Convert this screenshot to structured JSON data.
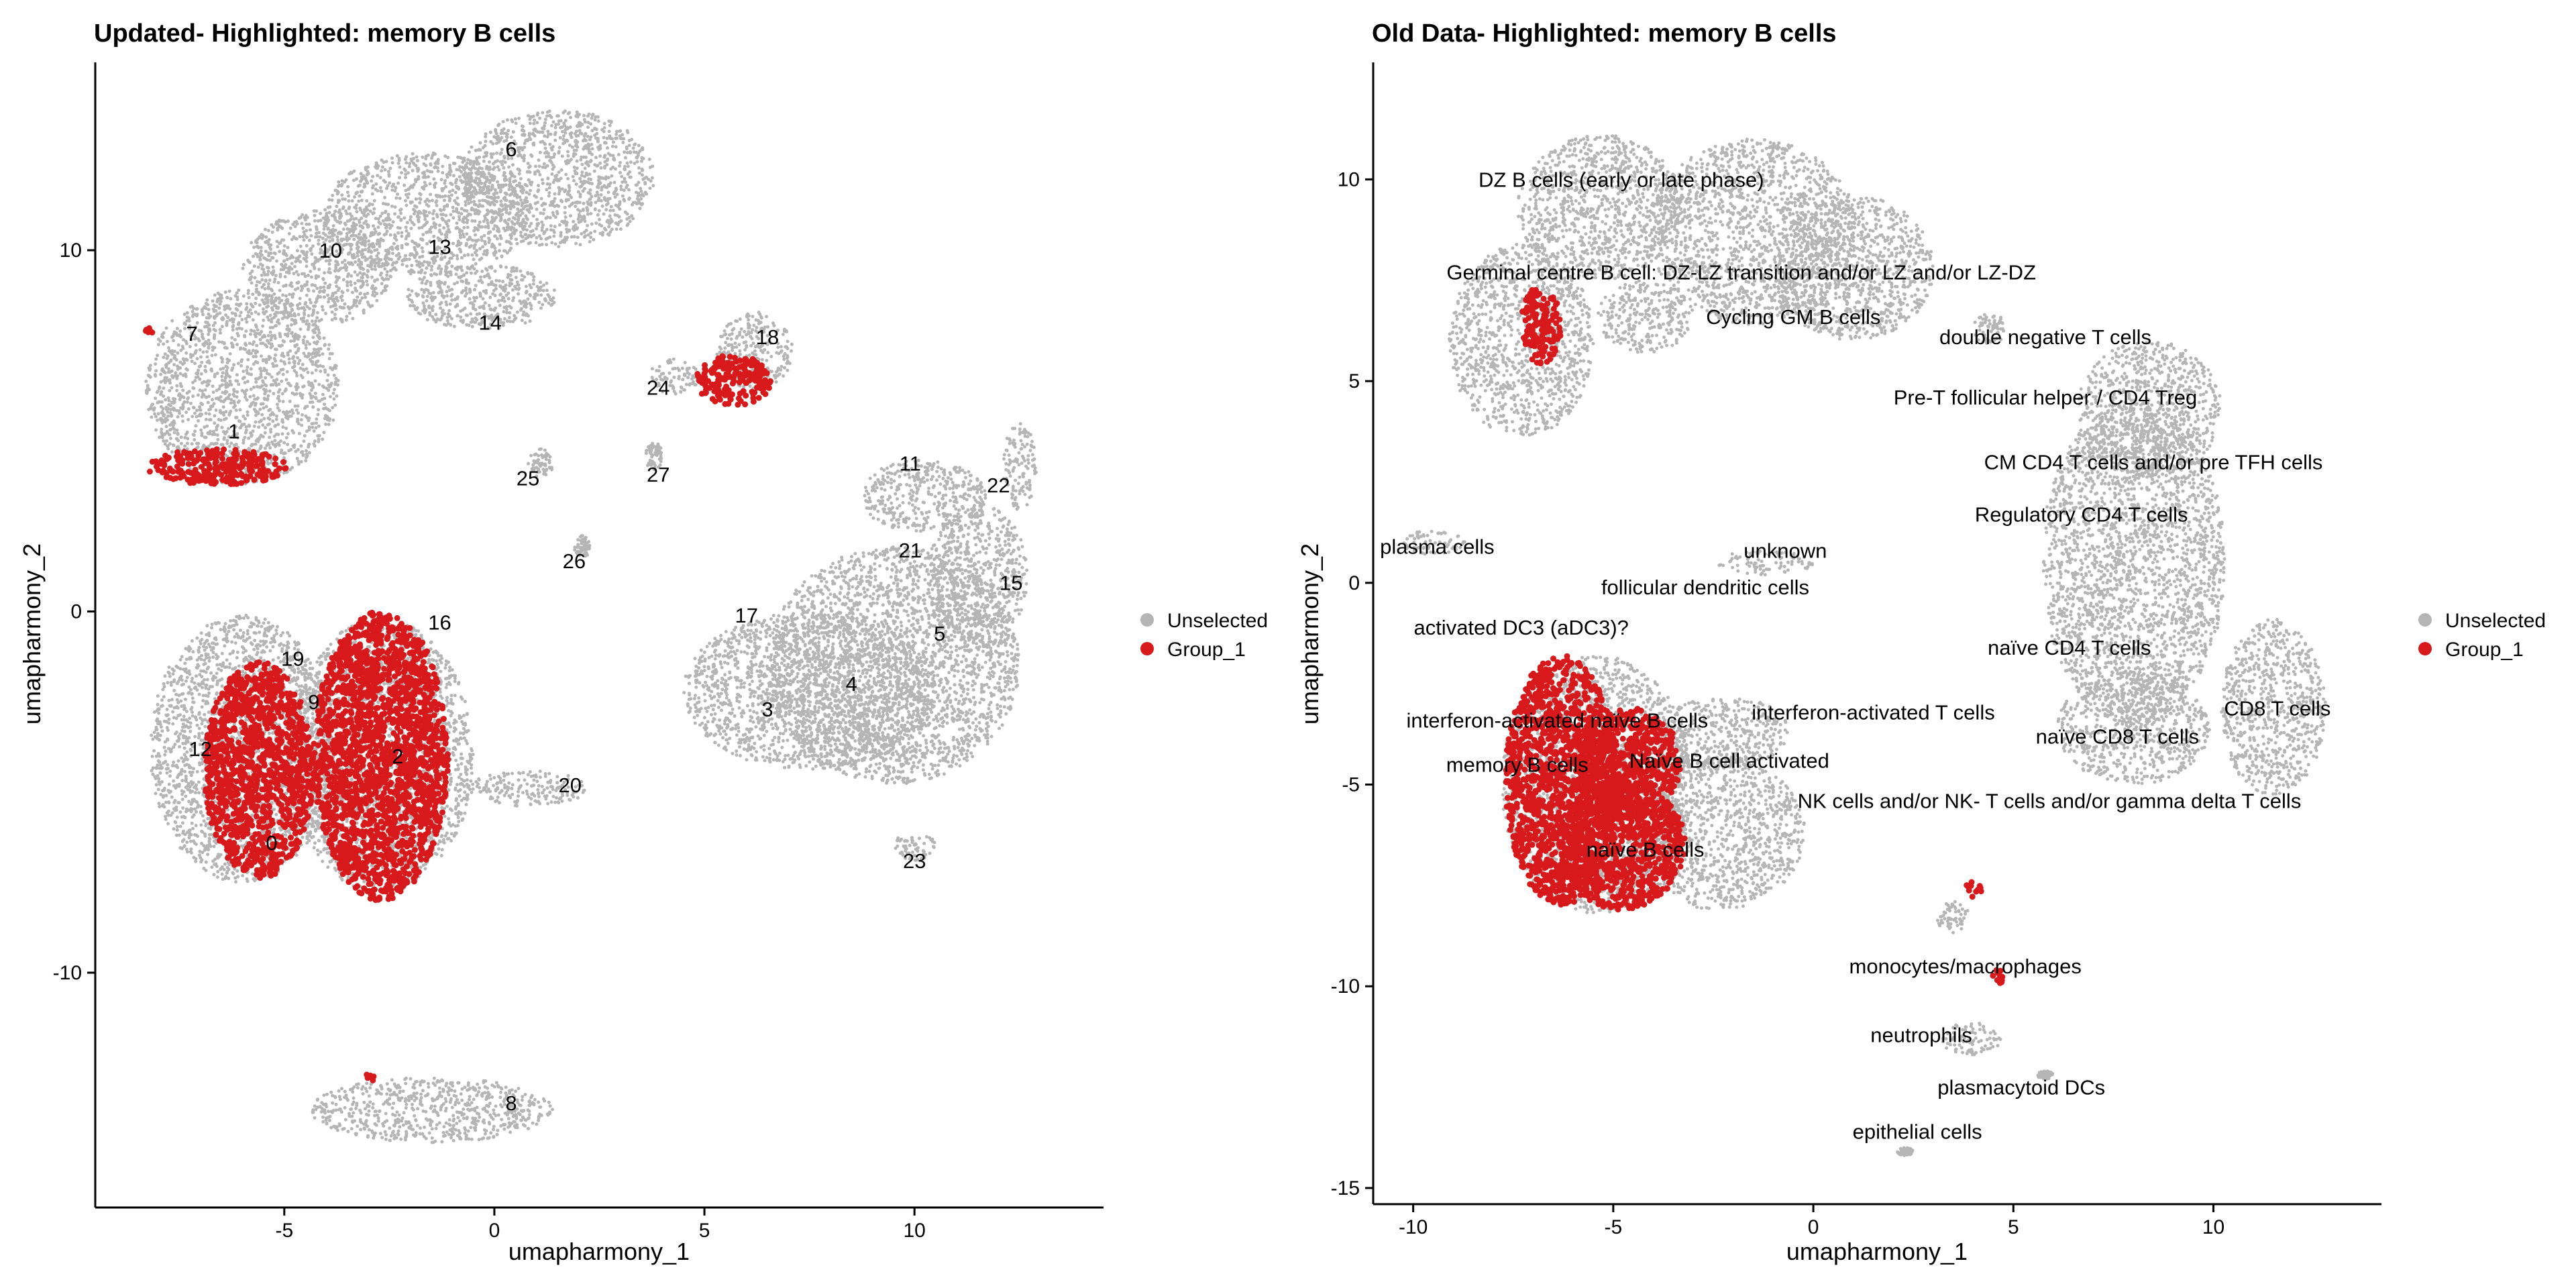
{
  "colors": {
    "unselected": "#B5B5B5",
    "group": "#D7191C",
    "axis": "#000000"
  },
  "chart_data": [
    {
      "type": "scatter",
      "title": "Updated- Highlighted: memory B cells",
      "xlabel": "umapharmony_1",
      "ylabel": "umapharmony_2",
      "xlim": [
        -9.5,
        14.5
      ],
      "ylim": [
        -16.5,
        15.2
      ],
      "xticks": [
        -5,
        0,
        5,
        10
      ],
      "yticks": [
        -10,
        0,
        10
      ],
      "legend": {
        "position": "right",
        "entries": [
          {
            "label": "Unselected",
            "color": "#B5B5B5"
          },
          {
            "label": "Group_1",
            "color": "#D7191C"
          }
        ]
      },
      "series": [
        {
          "name": "Unselected",
          "clusters": [
            {
              "cx": -6.0,
              "cy": 6.2,
              "rx": 2.3,
              "ry": 2.7
            },
            {
              "cx": -4.2,
              "cy": 9.5,
              "rx": 1.8,
              "ry": 1.6
            },
            {
              "cx": -1.6,
              "cy": 11.0,
              "rx": 2.5,
              "ry": 1.7
            },
            {
              "cx": 1.5,
              "cy": 12.0,
              "rx": 2.3,
              "ry": 1.9
            },
            {
              "cx": -0.3,
              "cy": 8.7,
              "rx": 1.8,
              "ry": 0.9
            },
            {
              "cx": -6.0,
              "cy": -3.8,
              "rx": 2.2,
              "ry": 3.7
            },
            {
              "cx": -2.7,
              "cy": -4.0,
              "rx": 2.2,
              "ry": 3.8
            },
            {
              "cx": 0.8,
              "cy": -4.9,
              "rx": 1.4,
              "ry": 0.5
            },
            {
              "cx": -1.5,
              "cy": -13.8,
              "rx": 2.9,
              "ry": 0.9
            },
            {
              "cx": 7.5,
              "cy": -2.2,
              "rx": 3.0,
              "ry": 2.2
            },
            {
              "cx": 9.5,
              "cy": -1.5,
              "rx": 3.0,
              "ry": 3.3
            },
            {
              "cx": 11.5,
              "cy": 1.0,
              "rx": 1.2,
              "ry": 2.0
            },
            {
              "cx": 10.2,
              "cy": 3.2,
              "rx": 1.5,
              "ry": 1.0
            },
            {
              "cx": 12.5,
              "cy": 4.0,
              "rx": 0.4,
              "ry": 1.2
            },
            {
              "cx": 6.2,
              "cy": 7.2,
              "rx": 0.9,
              "ry": 1.1
            },
            {
              "cx": 4.3,
              "cy": 6.5,
              "rx": 0.6,
              "ry": 0.5
            },
            {
              "cx": 10.0,
              "cy": -6.5,
              "rx": 0.5,
              "ry": 0.4
            },
            {
              "cx": 1.1,
              "cy": 4.1,
              "rx": 0.3,
              "ry": 0.4
            },
            {
              "cx": 3.8,
              "cy": 4.3,
              "rx": 0.2,
              "ry": 0.4
            },
            {
              "cx": 2.1,
              "cy": 1.8,
              "rx": 0.2,
              "ry": 0.3
            }
          ]
        },
        {
          "name": "Group_1",
          "clusters": [
            {
              "cx": -2.7,
              "cy": -4.0,
              "rx": 1.6,
              "ry": 4.0
            },
            {
              "cx": -5.6,
              "cy": -4.4,
              "rx": 1.3,
              "ry": 3.0
            },
            {
              "cx": -6.6,
              "cy": 4.0,
              "rx": 1.7,
              "ry": 0.5
            },
            {
              "cx": 5.7,
              "cy": 6.4,
              "rx": 0.9,
              "ry": 0.7
            },
            {
              "cx": -3.0,
              "cy": -12.9,
              "rx": 0.2,
              "ry": 0.1
            },
            {
              "cx": -8.2,
              "cy": 7.7,
              "rx": 0.1,
              "ry": 0.2
            }
          ]
        }
      ],
      "annotations": [
        {
          "text": "6",
          "x": 0.4,
          "y": 12.8
        },
        {
          "text": "10",
          "x": -3.9,
          "y": 10.0
        },
        {
          "text": "13",
          "x": -1.3,
          "y": 10.1
        },
        {
          "text": "14",
          "x": -0.1,
          "y": 8.0
        },
        {
          "text": "7",
          "x": -7.2,
          "y": 7.7
        },
        {
          "text": "1",
          "x": -6.2,
          "y": 5.0
        },
        {
          "text": "18",
          "x": 6.5,
          "y": 7.6
        },
        {
          "text": "24",
          "x": 3.9,
          "y": 6.2
        },
        {
          "text": "25",
          "x": 0.8,
          "y": 3.7
        },
        {
          "text": "27",
          "x": 3.9,
          "y": 3.8
        },
        {
          "text": "26",
          "x": 1.9,
          "y": 1.4
        },
        {
          "text": "11",
          "x": 9.9,
          "y": 4.1
        },
        {
          "text": "22",
          "x": 12.0,
          "y": 3.5
        },
        {
          "text": "21",
          "x": 9.9,
          "y": 1.7
        },
        {
          "text": "15",
          "x": 12.3,
          "y": 0.8
        },
        {
          "text": "17",
          "x": 6.0,
          "y": -0.1
        },
        {
          "text": "5",
          "x": 10.6,
          "y": -0.6
        },
        {
          "text": "4",
          "x": 8.5,
          "y": -2.0
        },
        {
          "text": "3",
          "x": 6.5,
          "y": -2.7
        },
        {
          "text": "16",
          "x": -1.3,
          "y": -0.3
        },
        {
          "text": "19",
          "x": -4.8,
          "y": -1.3
        },
        {
          "text": "9",
          "x": -4.3,
          "y": -2.5
        },
        {
          "text": "12",
          "x": -7.0,
          "y": -3.8
        },
        {
          "text": "2",
          "x": -2.3,
          "y": -4.0
        },
        {
          "text": "0",
          "x": -5.3,
          "y": -6.4
        },
        {
          "text": "20",
          "x": 1.8,
          "y": -4.8
        },
        {
          "text": "23",
          "x": 10.0,
          "y": -6.9
        },
        {
          "text": "8",
          "x": 0.4,
          "y": -13.6
        }
      ]
    },
    {
      "type": "scatter",
      "title": "Old Data- Highlighted: memory B cells",
      "xlabel": "umapharmony_1",
      "ylabel": "umapharmony_2",
      "xlim": [
        -11.0,
        14.2
      ],
      "ylim": [
        -15.4,
        12.9
      ],
      "xticks": [
        -10,
        -5,
        0,
        5,
        10
      ],
      "yticks": [
        -15,
        -10,
        -5,
        0,
        5,
        10
      ],
      "legend": {
        "position": "right",
        "entries": [
          {
            "label": "Unselected",
            "color": "#B5B5B5"
          },
          {
            "label": "Group_1",
            "color": "#D7191C"
          }
        ]
      },
      "series": [
        {
          "name": "Unselected",
          "clusters": [
            {
              "cx": -7.3,
              "cy": 6.0,
              "rx": 1.8,
              "ry": 2.4
            },
            {
              "cx": -5.3,
              "cy": 9.3,
              "rx": 2.1,
              "ry": 1.8
            },
            {
              "cx": -1.5,
              "cy": 8.7,
              "rx": 2.6,
              "ry": 2.3
            },
            {
              "cx": 1.0,
              "cy": 7.8,
              "rx": 2.0,
              "ry": 1.8
            },
            {
              "cx": -4.2,
              "cy": 6.6,
              "rx": 1.2,
              "ry": 0.9
            },
            {
              "cx": 8.0,
              "cy": 0.5,
              "rx": 2.3,
              "ry": 4.0
            },
            {
              "cx": 8.4,
              "cy": 4.3,
              "rx": 1.8,
              "ry": 1.7
            },
            {
              "cx": 8.0,
              "cy": -3.6,
              "rx": 1.9,
              "ry": 1.4
            },
            {
              "cx": 11.5,
              "cy": -3.1,
              "rx": 1.3,
              "ry": 2.2
            },
            {
              "cx": -5.4,
              "cy": -5.0,
              "rx": 2.4,
              "ry": 3.2
            },
            {
              "cx": -2.4,
              "cy": -6.2,
              "rx": 2.2,
              "ry": 1.9
            },
            {
              "cx": -2.2,
              "cy": -3.7,
              "rx": 1.6,
              "ry": 0.9
            },
            {
              "cx": -9.5,
              "cy": 1.0,
              "rx": 0.8,
              "ry": 0.3
            },
            {
              "cx": -1.2,
              "cy": 0.5,
              "rx": 1.2,
              "ry": 0.3
            },
            {
              "cx": 4.4,
              "cy": 6.3,
              "rx": 0.4,
              "ry": 0.4
            },
            {
              "cx": 3.5,
              "cy": -8.3,
              "rx": 0.4,
              "ry": 0.4
            },
            {
              "cx": 3.9,
              "cy": -11.3,
              "rx": 0.8,
              "ry": 0.4
            },
            {
              "cx": 5.8,
              "cy": -12.2,
              "rx": 0.2,
              "ry": 0.1
            },
            {
              "cx": 2.3,
              "cy": -14.1,
              "rx": 0.2,
              "ry": 0.1
            }
          ]
        },
        {
          "name": "Group_1",
          "clusters": [
            {
              "cx": -6.3,
              "cy": -4.9,
              "rx": 1.4,
              "ry": 3.1
            },
            {
              "cx": -4.6,
              "cy": -4.5,
              "rx": 1.3,
              "ry": 1.4
            },
            {
              "cx": -4.8,
              "cy": -6.5,
              "rx": 1.6,
              "ry": 1.6
            },
            {
              "cx": -6.8,
              "cy": 6.4,
              "rx": 0.5,
              "ry": 1.0
            },
            {
              "cx": 4.0,
              "cy": -7.6,
              "rx": 0.2,
              "ry": 0.2
            },
            {
              "cx": 4.6,
              "cy": -9.8,
              "rx": 0.2,
              "ry": 0.2
            }
          ]
        }
      ],
      "annotations": [
        {
          "text": "DZ B cells (early or late phase)",
          "x": -4.8,
          "y": 10.0
        },
        {
          "text": "Germinal centre B cell: DZ-LZ transition and/or LZ and/or LZ-DZ",
          "x": -1.8,
          "y": 7.7
        },
        {
          "text": "Cycling GM B cells",
          "x": -0.5,
          "y": 6.6
        },
        {
          "text": "double negative T cells",
          "x": 5.8,
          "y": 6.1
        },
        {
          "text": "Pre-T follicular helper / CD4 Treg",
          "x": 5.8,
          "y": 4.6
        },
        {
          "text": "CM CD4 T cells  and/or pre TFH cells",
          "x": 8.5,
          "y": 3.0
        },
        {
          "text": "Regulatory CD4 T cells",
          "x": 6.7,
          "y": 1.7
        },
        {
          "text": "plasma cells",
          "x": -9.4,
          "y": 0.9
        },
        {
          "text": "unknown",
          "x": -0.7,
          "y": 0.8
        },
        {
          "text": "follicular dendritic cells",
          "x": -2.7,
          "y": -0.1
        },
        {
          "text": "activated DC3 (aDC3)?",
          "x": -7.3,
          "y": -1.1
        },
        {
          "text": "naïve CD4 T cells",
          "x": 6.4,
          "y": -1.6
        },
        {
          "text": "interferon-activated naïve B cells",
          "x": -6.4,
          "y": -3.4
        },
        {
          "text": "interferon-activated T cells",
          "x": 1.5,
          "y": -3.2
        },
        {
          "text": "CD8 T cells",
          "x": 11.6,
          "y": -3.1
        },
        {
          "text": "naïve CD8 T cells",
          "x": 7.6,
          "y": -3.8
        },
        {
          "text": "memory B cells",
          "x": -7.4,
          "y": -4.5
        },
        {
          "text": "Naïve B cell activated",
          "x": -2.1,
          "y": -4.4
        },
        {
          "text": "NK cells and/or NK- T cells and/or gamma delta T cells",
          "x": 5.9,
          "y": -5.4
        },
        {
          "text": "naïve B cells",
          "x": -4.2,
          "y": -6.6
        },
        {
          "text": "monocytes/macrophages",
          "x": 3.8,
          "y": -9.5
        },
        {
          "text": "neutrophils",
          "x": 2.7,
          "y": -11.2
        },
        {
          "text": "plasmacytoid DCs",
          "x": 5.2,
          "y": -12.5
        },
        {
          "text": "epithelial cells",
          "x": 2.6,
          "y": -13.6
        }
      ]
    }
  ]
}
